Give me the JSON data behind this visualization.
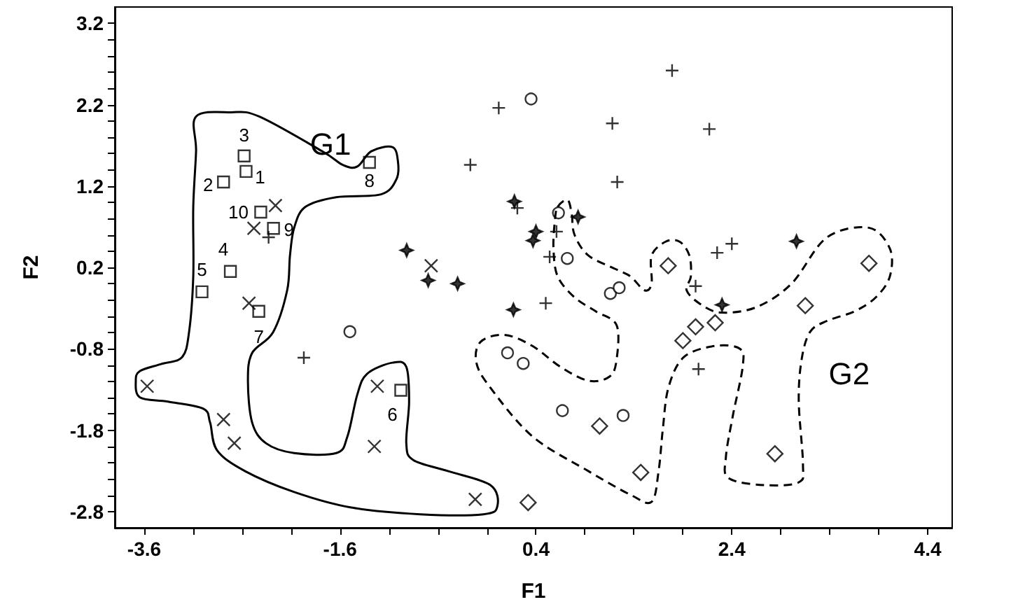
{
  "chart_data": {
    "type": "scatter",
    "xlabel": "F1",
    "ylabel": "F2",
    "xlim": [
      -3.9,
      4.65
    ],
    "ylim": [
      -3.0,
      3.4
    ],
    "xticks": [
      -3.6,
      {
        "value": -3.1,
        "label": null
      },
      {
        "value": -2.6,
        "label": null
      },
      {
        "value": -2.1,
        "label": null
      },
      -1.6,
      {
        "value": -1.1,
        "label": null
      },
      {
        "value": -0.6,
        "label": null
      },
      {
        "value": -0.1,
        "label": null
      },
      0.4,
      {
        "value": 0.9,
        "label": null
      },
      {
        "value": 1.4,
        "label": null
      },
      {
        "value": 1.9,
        "label": null
      },
      2.4,
      {
        "value": 2.9,
        "label": null
      },
      {
        "value": 3.4,
        "label": null
      },
      {
        "value": 3.9,
        "label": null
      },
      4.4
    ],
    "yticks": [
      -2.8,
      {
        "value": -2.6,
        "label": null
      },
      {
        "value": -2.4,
        "label": null
      },
      {
        "value": -2.2,
        "label": null
      },
      {
        "value": -2.0,
        "label": null
      },
      -1.8,
      {
        "value": -1.6,
        "label": null
      },
      {
        "value": -1.4,
        "label": null
      },
      {
        "value": -1.2,
        "label": null
      },
      {
        "value": -1.0,
        "label": null
      },
      -0.8,
      {
        "value": -0.6,
        "label": null
      },
      {
        "value": -0.4,
        "label": null
      },
      {
        "value": -0.2,
        "label": null
      },
      {
        "value": 0.0,
        "label": null
      },
      0.2,
      {
        "value": 0.4,
        "label": null
      },
      {
        "value": 0.6,
        "label": null
      },
      {
        "value": 0.8,
        "label": null
      },
      {
        "value": 1.0,
        "label": null
      },
      1.2,
      {
        "value": 1.4,
        "label": null
      },
      {
        "value": 1.6,
        "label": null
      },
      {
        "value": 1.8,
        "label": null
      },
      {
        "value": 2.0,
        "label": null
      },
      2.2,
      {
        "value": 2.4,
        "label": null
      },
      {
        "value": 2.6,
        "label": null
      },
      {
        "value": 2.8,
        "label": null
      },
      {
        "value": 3.0,
        "label": null
      },
      3.2
    ],
    "annotations": [
      "G1",
      "G2",
      {
        "text": "1",
        "x": -2.56,
        "y": 1.38
      },
      {
        "text": "2",
        "x": -2.79,
        "y": 1.25
      },
      {
        "text": "3",
        "x": -2.58,
        "y": 1.57
      },
      {
        "text": "4",
        "x": -2.72,
        "y": 0.15
      },
      {
        "text": "5",
        "x": -3.01,
        "y": -0.1
      },
      {
        "text": "6",
        "x": -0.98,
        "y": -1.31
      },
      {
        "text": "7",
        "x": -2.43,
        "y": -0.34
      },
      {
        "text": "8",
        "x": -1.3,
        "y": 1.49
      },
      {
        "text": "9",
        "x": -2.28,
        "y": 0.68
      },
      {
        "text": "10",
        "x": -2.41,
        "y": 0.88
      }
    ],
    "series": [
      {
        "marker": "square",
        "color": "#000000",
        "x": [
          -2.56,
          -2.79,
          -2.58,
          -2.72,
          -3.01,
          -0.98,
          -2.43,
          -1.3,
          -2.28,
          -2.41
        ],
        "values": [
          1.38,
          1.25,
          1.57,
          0.15,
          -0.1,
          -1.31,
          -0.34,
          1.49,
          0.68,
          0.88
        ]
      },
      {
        "marker": "cross",
        "color": "#000000",
        "x": [
          -2.26,
          -2.48,
          -0.67,
          -2.53,
          -3.57,
          -1.22,
          -2.79,
          -2.68,
          -1.25,
          -0.22
        ],
        "values": [
          0.96,
          0.68,
          0.22,
          -0.24,
          -1.26,
          -1.26,
          -1.67,
          -1.96,
          -2.0,
          -2.65
        ]
      },
      {
        "marker": "circle",
        "color": "#000000",
        "x": [
          0.35,
          0.63,
          0.72,
          1.16,
          1.25,
          -1.5,
          0.11,
          0.27,
          0.67,
          1.29
        ],
        "values": [
          2.27,
          0.87,
          0.31,
          -0.12,
          -0.05,
          -0.59,
          -0.85,
          -0.98,
          -1.56,
          -1.62
        ]
      },
      {
        "marker": "plus",
        "color": "#000000",
        "x": [
          0.02,
          1.79,
          1.18,
          2.17,
          -0.27,
          1.23,
          0.21,
          0.61,
          0.54,
          2.4,
          2.25,
          2.03,
          0.5,
          -2.33,
          -1.97,
          2.06
        ],
        "values": [
          2.16,
          2.62,
          1.97,
          1.9,
          1.46,
          1.25,
          0.93,
          0.64,
          0.33,
          0.49,
          0.38,
          -0.03,
          -0.24,
          0.57,
          -0.91,
          -1.05
        ]
      },
      {
        "marker": "diamond",
        "color": "#000000",
        "x": [
          1.75,
          3.8,
          3.15,
          1.9,
          2.03,
          2.23,
          1.05,
          1.47,
          2.84,
          0.32
        ],
        "values": [
          0.22,
          0.25,
          -0.27,
          -0.7,
          -0.53,
          -0.48,
          -1.75,
          -2.32,
          -2.09,
          -2.69
        ]
      },
      {
        "marker": "star",
        "color": "#000000",
        "x": [
          -0.92,
          -0.7,
          -0.4,
          0.17,
          0.18,
          0.83,
          0.4,
          0.37,
          3.06,
          2.3
        ],
        "values": [
          0.41,
          0.04,
          0.0,
          -0.32,
          1.01,
          0.82,
          0.64,
          0.53,
          0.52,
          -0.26
        ]
      }
    ]
  }
}
